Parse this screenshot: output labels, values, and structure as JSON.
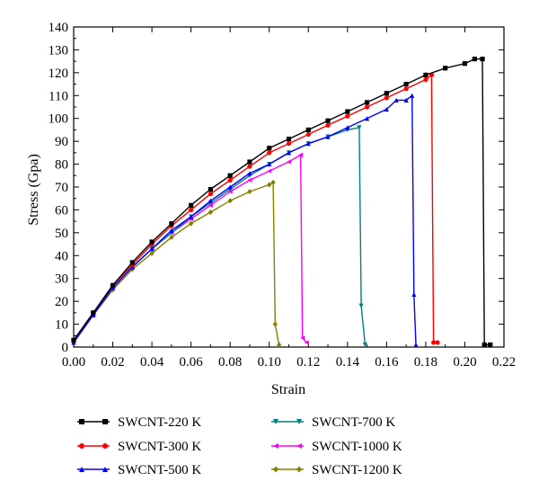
{
  "chart_data": {
    "type": "line",
    "title": "",
    "xlabel": "Strain",
    "ylabel": "Stress (Gpa)",
    "xlim": [
      0.0,
      0.22
    ],
    "ylim": [
      0,
      140
    ],
    "xticks": [
      "0.00",
      "0.02",
      "0.04",
      "0.06",
      "0.08",
      "0.10",
      "0.12",
      "0.14",
      "0.16",
      "0.18",
      "0.20",
      "0.22"
    ],
    "yticks": [
      "0",
      "10",
      "20",
      "30",
      "40",
      "50",
      "60",
      "70",
      "80",
      "90",
      "100",
      "110",
      "120",
      "130",
      "140"
    ],
    "grid": false,
    "legend_position": "bottom",
    "series": [
      {
        "name": "SWCNT-220 K",
        "color": "#000000",
        "marker": "square",
        "x": [
          0.0,
          0.01,
          0.02,
          0.03,
          0.04,
          0.05,
          0.06,
          0.07,
          0.08,
          0.09,
          0.1,
          0.11,
          0.12,
          0.13,
          0.14,
          0.15,
          0.16,
          0.17,
          0.18,
          0.19,
          0.2,
          0.205,
          0.209,
          0.21,
          0.213
        ],
        "y": [
          3,
          15,
          27,
          37,
          46,
          54,
          62,
          69,
          75,
          81,
          87,
          91,
          95,
          99,
          103,
          107,
          111,
          115,
          119,
          122,
          124,
          126,
          126,
          1,
          1
        ]
      },
      {
        "name": "SWCNT-300 K",
        "color": "#ff0000",
        "marker": "circle",
        "x": [
          0.0,
          0.01,
          0.02,
          0.03,
          0.04,
          0.05,
          0.06,
          0.07,
          0.08,
          0.09,
          0.1,
          0.11,
          0.12,
          0.13,
          0.14,
          0.15,
          0.16,
          0.17,
          0.18,
          0.183,
          0.184,
          0.186
        ],
        "y": [
          3,
          15,
          27,
          36,
          45,
          53,
          60,
          67,
          73,
          79,
          85,
          89,
          93,
          97,
          101,
          105,
          109,
          113,
          117,
          119,
          2,
          2
        ]
      },
      {
        "name": "SWCNT-500 K",
        "color": "#0000ff",
        "marker": "triangle-up",
        "x": [
          0.0,
          0.01,
          0.02,
          0.03,
          0.04,
          0.05,
          0.06,
          0.07,
          0.08,
          0.09,
          0.1,
          0.11,
          0.12,
          0.13,
          0.14,
          0.15,
          0.16,
          0.165,
          0.17,
          0.173,
          0.174,
          0.175
        ],
        "y": [
          2,
          14,
          26,
          35,
          43,
          51,
          57,
          64,
          70,
          76,
          80,
          85,
          89,
          92,
          96,
          100,
          104,
          108,
          108,
          110,
          23,
          1
        ]
      },
      {
        "name": "SWCNT-700 K",
        "color": "#008080",
        "marker": "triangle-down",
        "x": [
          0.0,
          0.01,
          0.02,
          0.03,
          0.04,
          0.05,
          0.06,
          0.07,
          0.08,
          0.09,
          0.1,
          0.11,
          0.12,
          0.13,
          0.14,
          0.146,
          0.147,
          0.149
        ],
        "y": [
          2,
          14,
          26,
          35,
          43,
          50,
          57,
          63,
          69,
          75,
          80,
          85,
          89,
          92,
          95,
          96,
          18,
          1
        ]
      },
      {
        "name": "SWCNT-1000 K",
        "color": "#ff00ff",
        "marker": "triangle-left",
        "x": [
          0.0,
          0.01,
          0.02,
          0.03,
          0.04,
          0.05,
          0.06,
          0.07,
          0.08,
          0.09,
          0.1,
          0.11,
          0.116,
          0.117,
          0.119
        ],
        "y": [
          3,
          14,
          26,
          35,
          43,
          50,
          56,
          62,
          68,
          73,
          77,
          81,
          84,
          4,
          2
        ]
      },
      {
        "name": "SWCNT-1200 K",
        "color": "#808000",
        "marker": "diamond",
        "x": [
          0.0,
          0.01,
          0.02,
          0.03,
          0.04,
          0.05,
          0.06,
          0.07,
          0.08,
          0.09,
          0.1,
          0.102,
          0.103,
          0.105
        ],
        "y": [
          2,
          14,
          25,
          34,
          41,
          48,
          54,
          59,
          64,
          68,
          71,
          72,
          10,
          1
        ]
      }
    ]
  }
}
